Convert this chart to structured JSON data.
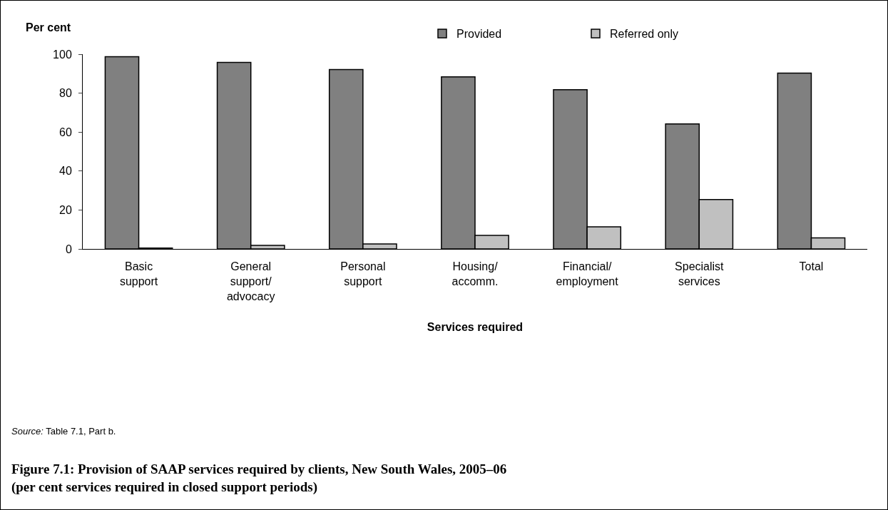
{
  "chart_data": {
    "type": "bar",
    "title": "Figure 7.1: Provision of SAAP services required by clients, New South Wales, 2005–06\n(per cent services required in closed support periods)",
    "xlabel": "Services required",
    "ylabel": "Per cent",
    "categories": [
      "Basic\nsupport",
      "General\nsupport/\nadvocacy",
      "Personal\nsupport",
      "Housing/\naccomm.",
      "Financial/\nemployment",
      "Specialist\nservices",
      "Total"
    ],
    "series": [
      {
        "name": "Provided",
        "color": "#808080",
        "values": [
          98.7,
          95.8,
          92.1,
          88.4,
          81.8,
          64.2,
          90.3
        ]
      },
      {
        "name": "Referred only",
        "color": "#c0c0c0",
        "values": [
          0.5,
          1.8,
          2.6,
          7.0,
          11.4,
          25.4,
          5.7
        ]
      }
    ],
    "ylim": [
      0,
      100
    ],
    "yticks": [
      0,
      20,
      40,
      60,
      80,
      100
    ],
    "grid": false,
    "legend": "top right",
    "annotations": [
      "Source: Table 7.1, Part b."
    ]
  }
}
